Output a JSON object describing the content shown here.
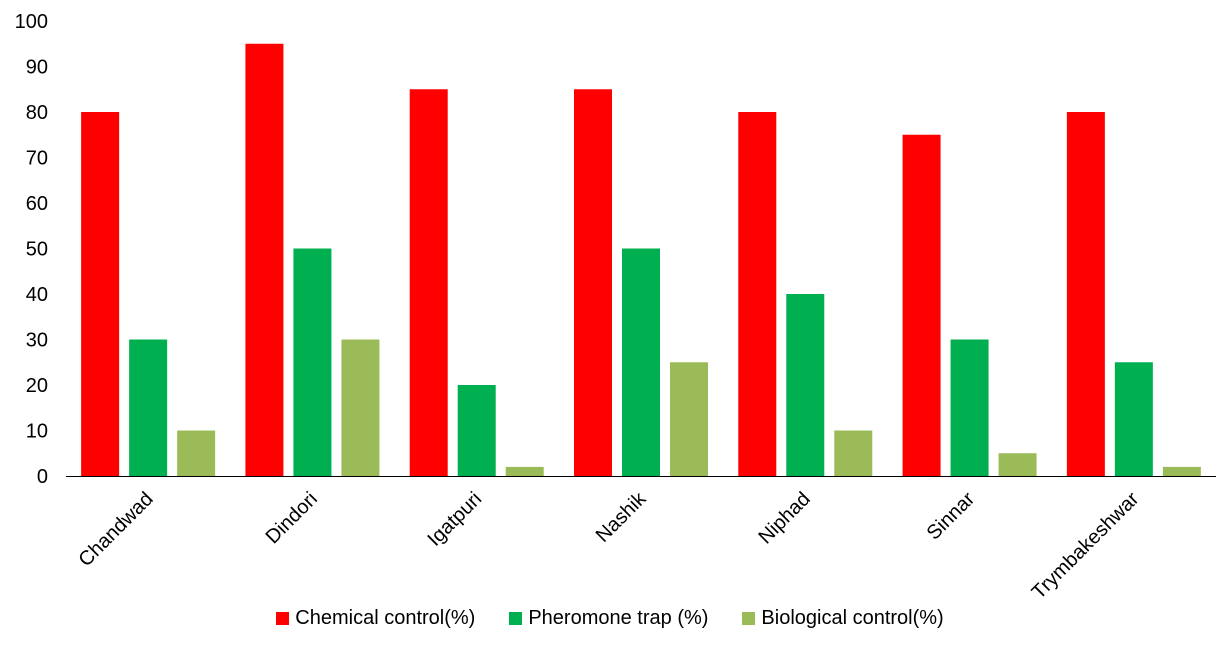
{
  "chart_data": {
    "type": "bar",
    "categories": [
      "Chandwad",
      "Dindori",
      "Igatpuri",
      "Nashik",
      "Niphad",
      "Sinnar",
      "Trymbakeshwar"
    ],
    "series": [
      {
        "name": "Chemical control(%)",
        "color": "#ff0000",
        "values": [
          80,
          95,
          85,
          85,
          80,
          75,
          80
        ]
      },
      {
        "name": "Pheromone trap (%)",
        "color": "#00b050",
        "values": [
          30,
          50,
          20,
          50,
          40,
          30,
          25
        ]
      },
      {
        "name": "Biological control(%)",
        "color": "#9bbb59",
        "values": [
          10,
          30,
          2,
          25,
          10,
          5,
          2
        ]
      }
    ],
    "title": "",
    "xlabel": "",
    "ylabel": "",
    "ylim": [
      0,
      100
    ],
    "yticks": [
      0,
      10,
      20,
      30,
      40,
      50,
      60,
      70,
      80,
      90,
      100
    ],
    "grid": false,
    "legend_position": "bottom"
  }
}
